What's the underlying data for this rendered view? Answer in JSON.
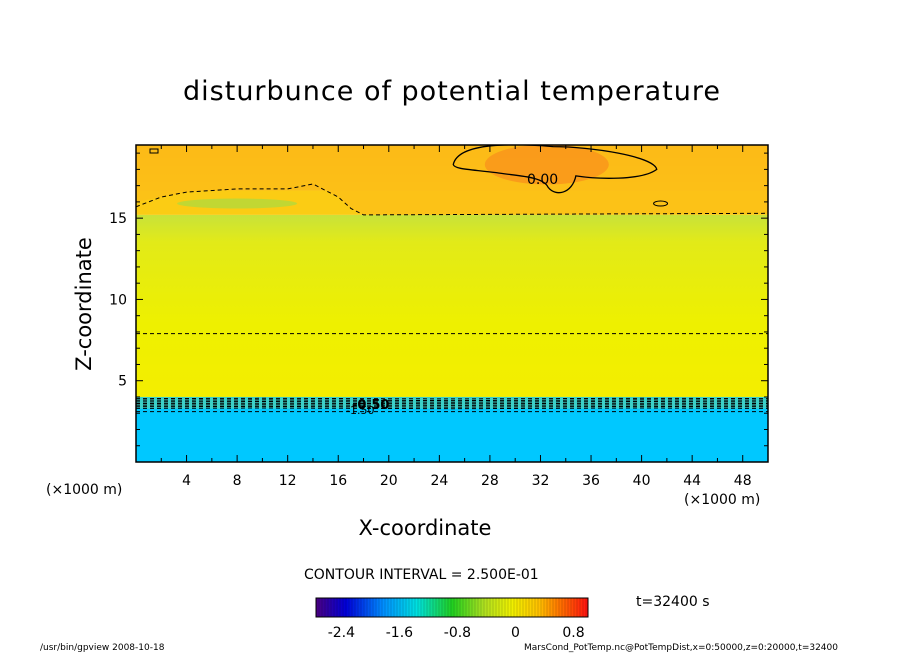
{
  "chart_data": {
    "type": "heatmap",
    "title": "disturbunce of potential temperature",
    "xlabel": "X-coordinate",
    "ylabel": "Z-coordinate",
    "x_unit_left": "(×1000 m)",
    "x_unit_right": "(×1000 m)",
    "xlim": [
      0,
      50
    ],
    "ylim": [
      0,
      19.5
    ],
    "x_ticks": [
      4,
      8,
      12,
      16,
      20,
      24,
      28,
      32,
      36,
      40,
      44,
      48
    ],
    "y_ticks": [
      5,
      10,
      15
    ],
    "layers": [
      {
        "z_from": 0,
        "z_to": 3.3,
        "value": -2.0,
        "color": "#00c8ff"
      },
      {
        "z_from": 3.3,
        "z_to": 4.0,
        "value": -1.4,
        "color": "#5ad8a0"
      },
      {
        "z_from": 4.0,
        "z_to": 15.2,
        "value": -0.3,
        "color": "#e8ee10"
      },
      {
        "z_from": 15.2,
        "z_to": 16.7,
        "value": -0.1,
        "color": "#fac810"
      },
      {
        "z_from": 16.7,
        "z_to": 19.5,
        "value": 0.1,
        "color": "#fba81a"
      }
    ],
    "contour_labels": [
      "0.00",
      "-0.50",
      "-1.50"
    ],
    "contour_interval_text": "CONTOUR INTERVAL = 2.500E-01",
    "colorbar": {
      "ticks": [
        "-2.4",
        "-1.6",
        "-0.8",
        "0",
        "0.8"
      ],
      "tick_values": [
        -2.4,
        -1.6,
        -0.8,
        0,
        0.8
      ],
      "range": [
        -2.75,
        1.0
      ],
      "colors": [
        "#4b0082",
        "#0000e0",
        "#0090ff",
        "#00e0e0",
        "#20d020",
        "#b0e020",
        "#f0f000",
        "#ffc000",
        "#ff7000",
        "#ff1010"
      ]
    },
    "time_label": "t=32400 s"
  },
  "footer": {
    "left": "/usr/bin/gpview   2008-10-18",
    "right": "MarsCond_PotTemp.nc@PotTempDist,x=0:50000,z=0:20000,t=32400"
  }
}
